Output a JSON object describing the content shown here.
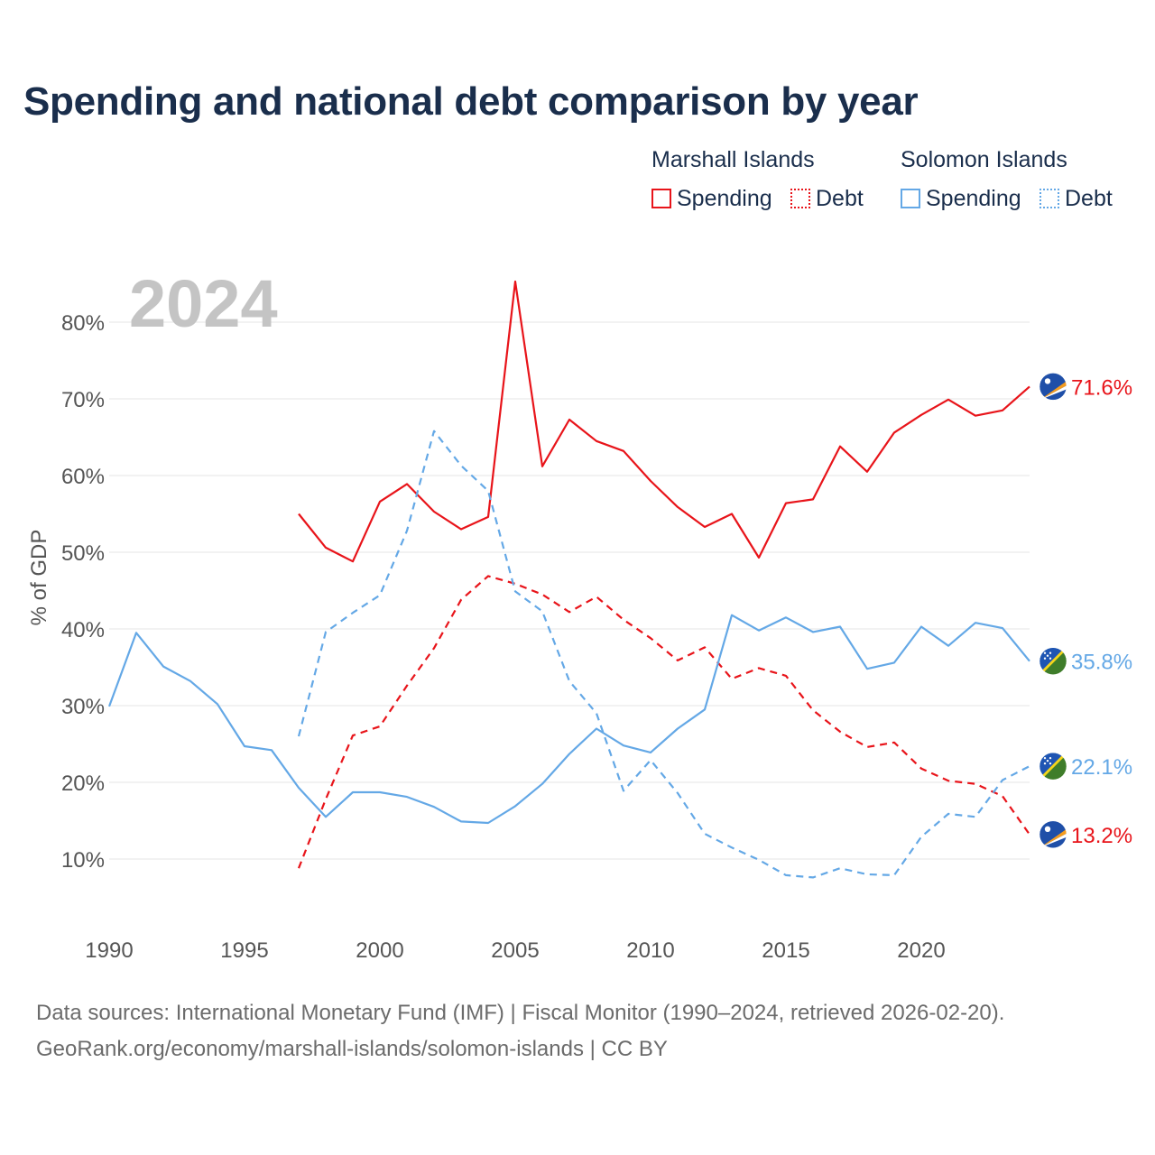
{
  "title": "Spending and national debt comparison by year",
  "legend": {
    "groups": [
      {
        "country": "Marshall Islands",
        "color": "#e8141a",
        "items": [
          {
            "label": "Spending",
            "style": "solid"
          },
          {
            "label": "Debt",
            "style": "dotted"
          }
        ]
      },
      {
        "country": "Solomon Islands",
        "color": "#64a8e6",
        "items": [
          {
            "label": "Spending",
            "style": "solid"
          },
          {
            "label": "Debt",
            "style": "dotted"
          }
        ]
      }
    ]
  },
  "footer": {
    "source": "Data sources: International Monetary Fund (IMF) | Fiscal Monitor (1990–2024, retrieved 2026-02-20).",
    "url": "GeoRank.org/economy/marshall-islands/solomon-islands | CC BY"
  },
  "chart_data": {
    "type": "line",
    "title": "Spending and national debt comparison by year",
    "year_label": "2024",
    "ylabel": "% of GDP",
    "xlabel": "",
    "xlim": [
      1990,
      2024
    ],
    "ylim": [
      0,
      85
    ],
    "yticks": [
      10,
      20,
      30,
      40,
      50,
      60,
      70,
      80
    ],
    "ytick_labels": [
      "10%",
      "20%",
      "30%",
      "40%",
      "50%",
      "60%",
      "70%",
      "80%"
    ],
    "xticks": [
      1990,
      1995,
      2000,
      2005,
      2010,
      2015,
      2020
    ],
    "xtick_labels": [
      "1990",
      "1995",
      "2000",
      "2005",
      "2010",
      "2015",
      "2020"
    ],
    "grid": true,
    "series": [
      {
        "name": "Marshall Islands Spending",
        "country": "Marshall Islands",
        "metric": "Spending",
        "color": "#e8141a",
        "dash": "solid",
        "end_label": "71.6%",
        "flag": "marshall-islands",
        "x": [
          1997,
          1998,
          1999,
          2000,
          2001,
          2002,
          2003,
          2004,
          2005,
          2006,
          2007,
          2008,
          2009,
          2010,
          2011,
          2012,
          2013,
          2014,
          2015,
          2016,
          2017,
          2018,
          2019,
          2020,
          2021,
          2022,
          2023,
          2024
        ],
        "y": [
          55.0,
          50.6,
          48.8,
          56.6,
          58.9,
          55.3,
          53.0,
          54.6,
          85.3,
          61.2,
          67.3,
          64.5,
          63.2,
          59.3,
          55.9,
          53.3,
          55.0,
          49.3,
          56.4,
          56.9,
          63.8,
          60.5,
          65.6,
          67.9,
          69.9,
          67.8,
          68.5,
          71.6
        ]
      },
      {
        "name": "Marshall Islands Debt",
        "country": "Marshall Islands",
        "metric": "Debt",
        "color": "#e8141a",
        "dash": "dashed",
        "end_label": "13.2%",
        "flag": "marshall-islands",
        "x": [
          1997,
          1998,
          1999,
          2000,
          2001,
          2002,
          2003,
          2004,
          2005,
          2006,
          2007,
          2008,
          2009,
          2010,
          2011,
          2012,
          2013,
          2014,
          2015,
          2016,
          2017,
          2018,
          2019,
          2020,
          2021,
          2022,
          2023,
          2024
        ],
        "y": [
          8.8,
          17.8,
          26.1,
          27.3,
          32.6,
          37.5,
          43.8,
          46.9,
          45.9,
          44.5,
          42.2,
          44.2,
          41.2,
          38.8,
          35.9,
          37.6,
          33.5,
          34.9,
          33.9,
          29.4,
          26.6,
          24.6,
          25.2,
          21.8,
          20.2,
          19.8,
          18.2,
          13.2
        ]
      },
      {
        "name": "Solomon Islands Spending",
        "country": "Solomon Islands",
        "metric": "Spending",
        "color": "#64a8e6",
        "dash": "solid",
        "end_label": "35.8%",
        "flag": "solomon-islands",
        "x": [
          1990,
          1991,
          1992,
          1993,
          1994,
          1995,
          1996,
          1997,
          1998,
          1999,
          2000,
          2001,
          2002,
          2003,
          2004,
          2005,
          2006,
          2007,
          2008,
          2009,
          2010,
          2011,
          2012,
          2013,
          2014,
          2015,
          2016,
          2017,
          2018,
          2019,
          2020,
          2021,
          2022,
          2023,
          2024
        ],
        "y": [
          29.9,
          39.5,
          35.1,
          33.2,
          30.2,
          24.7,
          24.2,
          19.3,
          15.5,
          18.7,
          18.7,
          18.1,
          16.8,
          14.9,
          14.7,
          16.9,
          19.8,
          23.7,
          27.0,
          24.8,
          23.9,
          27.0,
          29.5,
          41.8,
          39.8,
          41.5,
          39.6,
          40.3,
          34.8,
          35.6,
          40.3,
          37.8,
          40.8,
          40.1,
          35.8
        ]
      },
      {
        "name": "Solomon Islands Debt",
        "country": "Solomon Islands",
        "metric": "Debt",
        "color": "#64a8e6",
        "dash": "dashed",
        "end_label": "22.1%",
        "flag": "solomon-islands",
        "x": [
          1997,
          1998,
          1999,
          2000,
          2001,
          2002,
          2003,
          2004,
          2005,
          2006,
          2007,
          2008,
          2009,
          2010,
          2011,
          2012,
          2013,
          2014,
          2015,
          2016,
          2017,
          2018,
          2019,
          2020,
          2021,
          2022,
          2023,
          2024
        ],
        "y": [
          26.0,
          39.6,
          42.1,
          44.4,
          52.8,
          65.8,
          61.3,
          58.0,
          44.9,
          42.3,
          33.2,
          29.0,
          18.9,
          22.9,
          18.6,
          13.3,
          11.5,
          9.9,
          7.9,
          7.6,
          8.8,
          8.0,
          7.9,
          12.9,
          15.9,
          15.5,
          20.3,
          22.1
        ]
      }
    ]
  }
}
